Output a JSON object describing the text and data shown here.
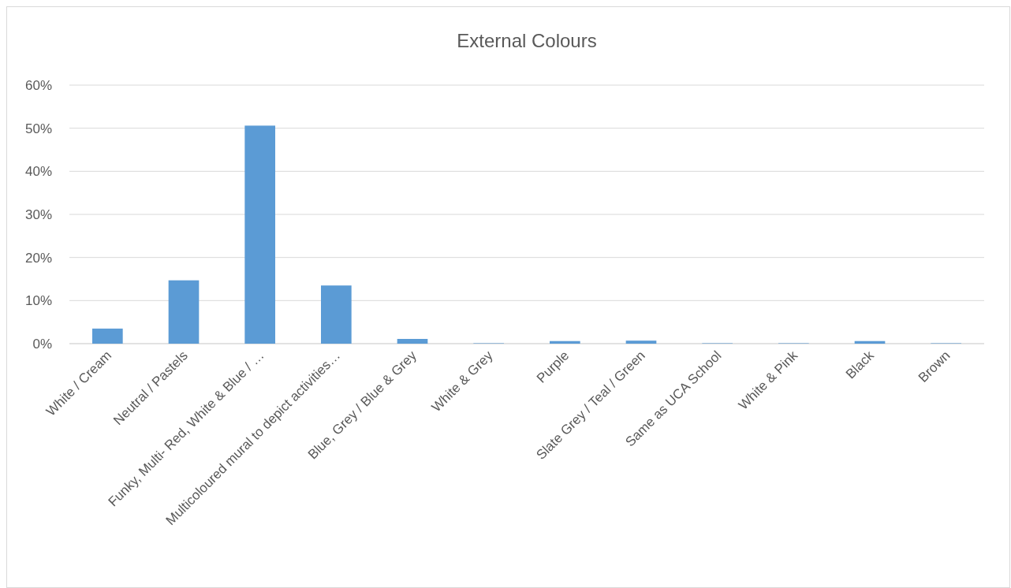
{
  "chart_data": {
    "type": "bar",
    "title": "External Colours",
    "categories": [
      "White / Cream",
      "Neutral / Pastels",
      "Funky, Multi- Red, White & Blue / …",
      "Multicoloured mural to depict activities…",
      "Blue, Grey / Blue & Grey",
      "White & Grey",
      "Purple",
      "Slate Grey / Teal / Green",
      "Same as UCA School",
      "White & Pink",
      "Black",
      "Brown"
    ],
    "values": [
      3.5,
      14.7,
      50.6,
      13.5,
      1.1,
      0.1,
      0.6,
      0.7,
      0.1,
      0.1,
      0.6,
      0.1
    ],
    "color": "#5b9bd5",
    "ylim": [
      0,
      60
    ],
    "yticks": [
      {
        "value": 0,
        "label": "0%"
      },
      {
        "value": 10,
        "label": "10%"
      },
      {
        "value": 20,
        "label": "20%"
      },
      {
        "value": 30,
        "label": "30%"
      },
      {
        "value": 40,
        "label": "40%"
      },
      {
        "value": 50,
        "label": "50%"
      },
      {
        "value": 60,
        "label": "60%"
      }
    ],
    "grid": "y"
  }
}
